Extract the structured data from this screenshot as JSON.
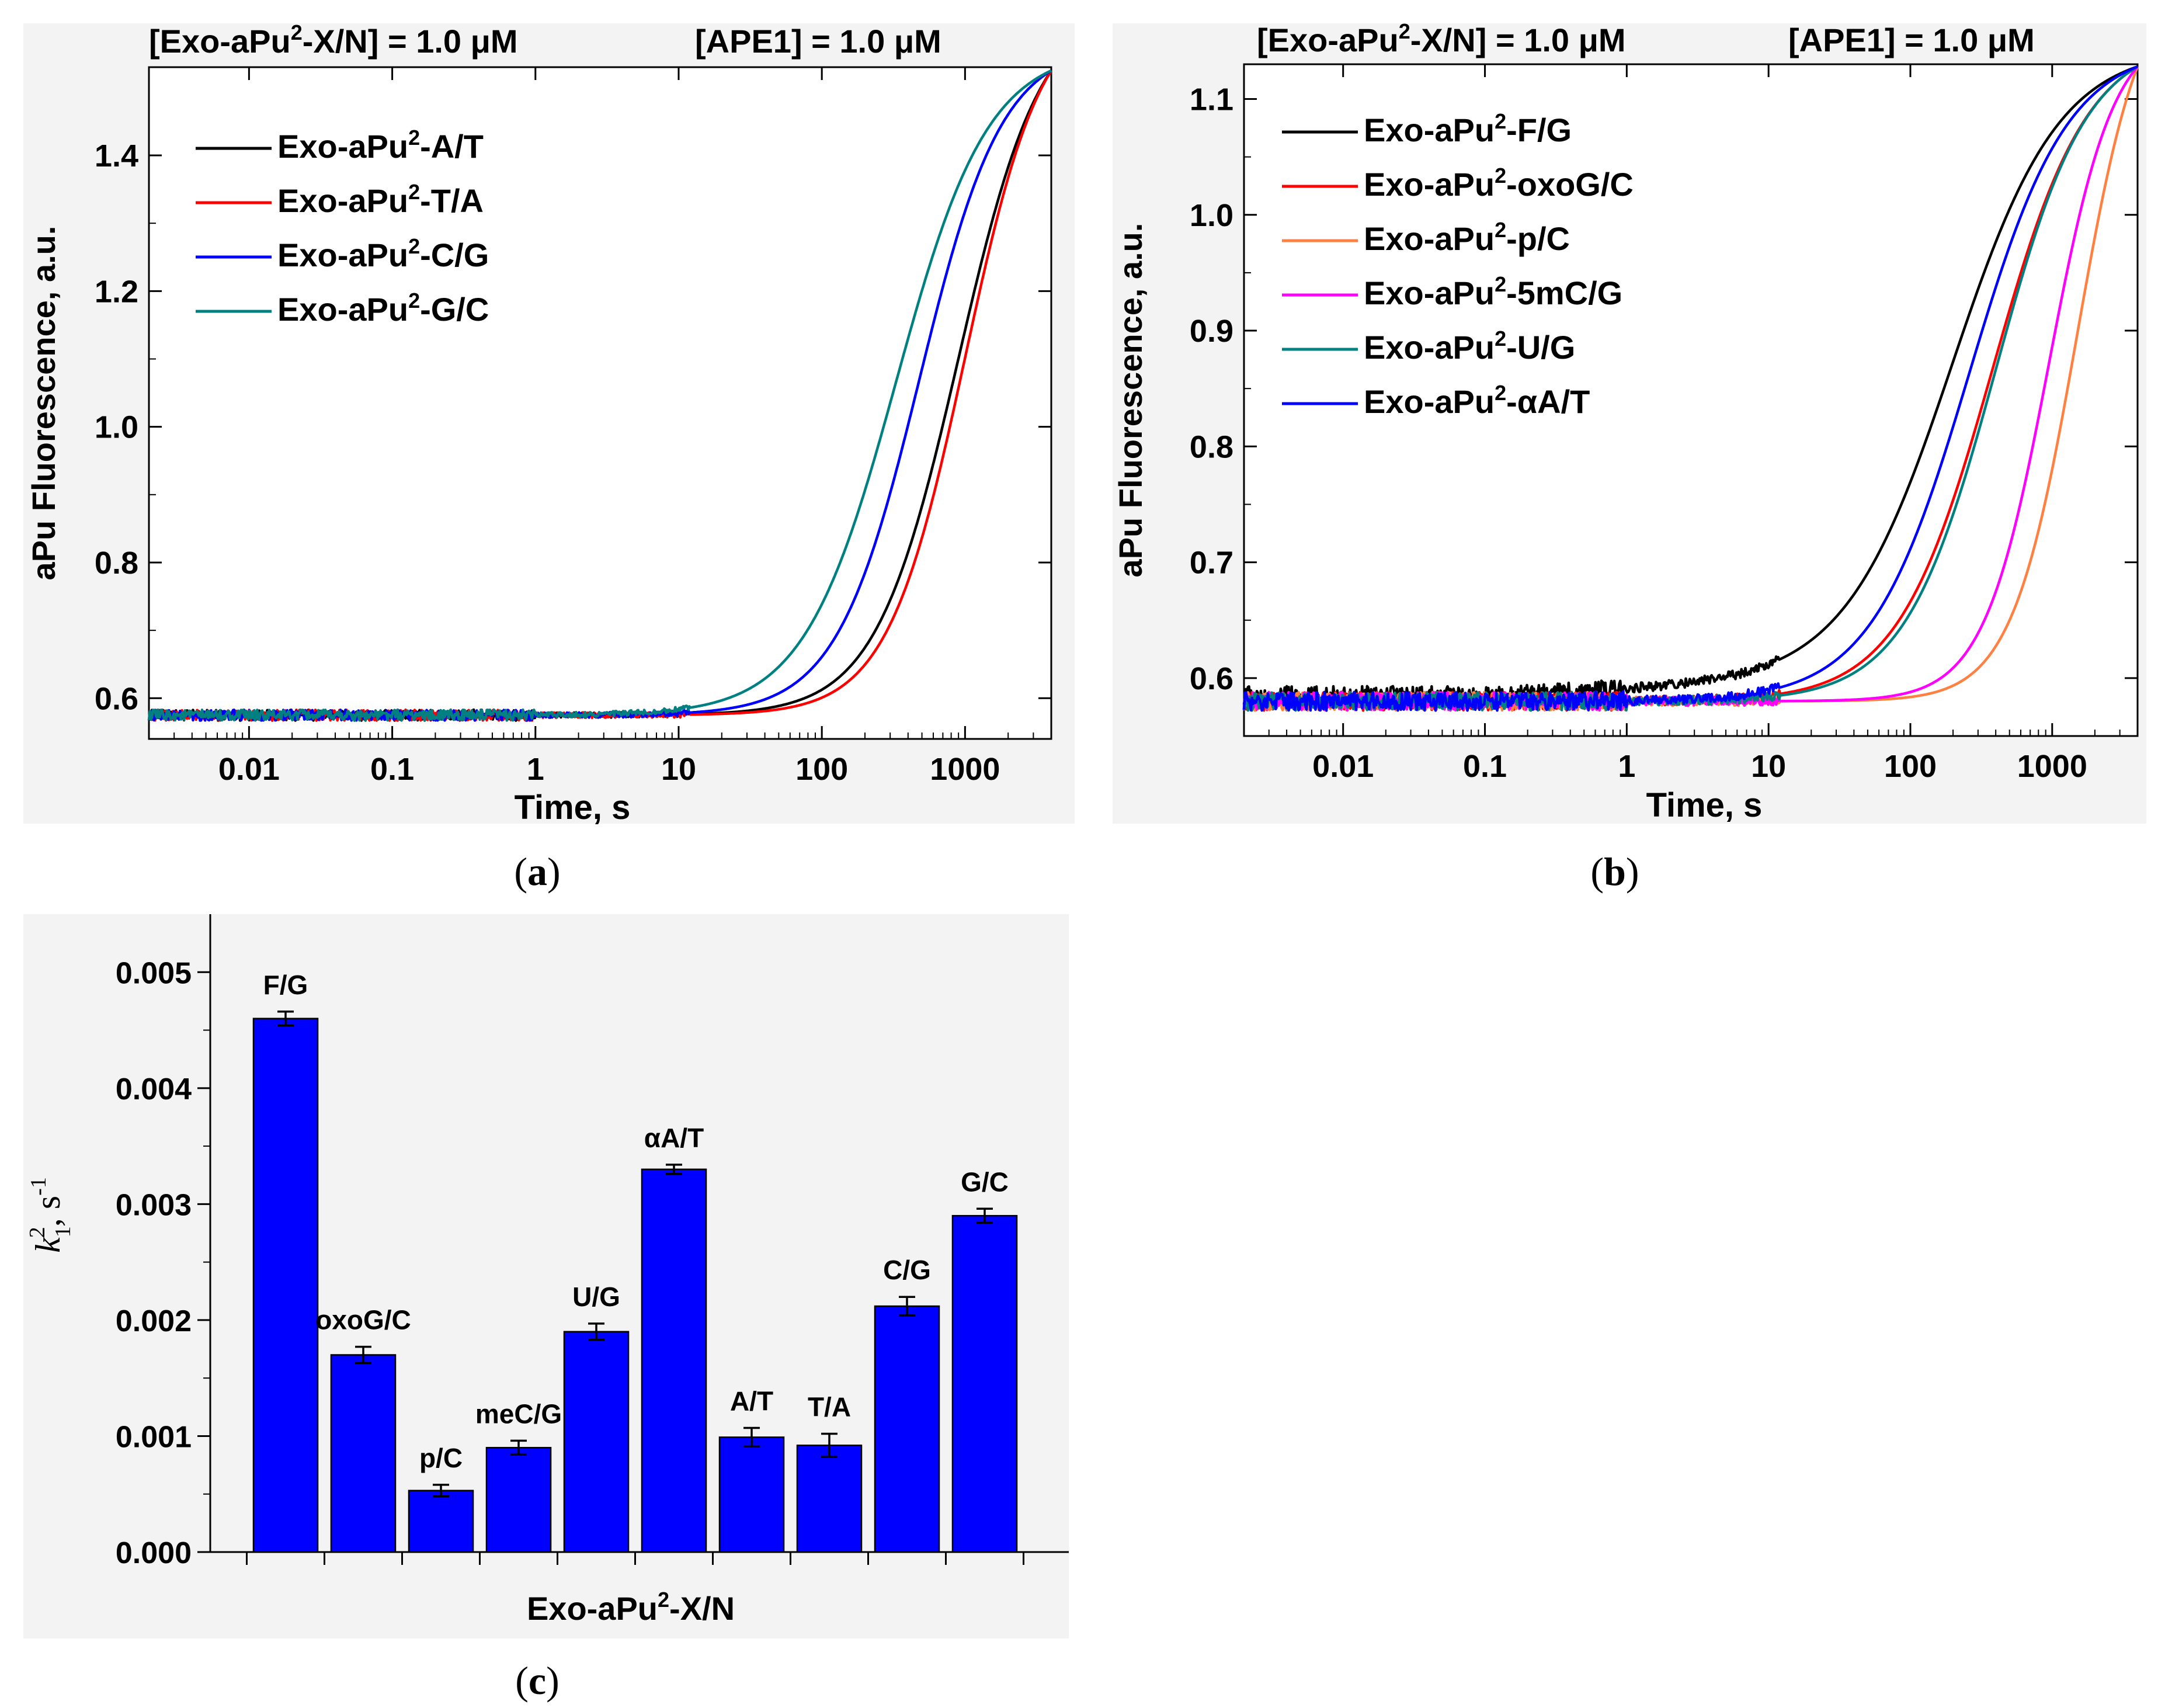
{
  "chart_data": [
    {
      "type": "line",
      "panel_label": "a",
      "header_left": {
        "prefix": "[Exo-aPu",
        "sup": "2",
        "suffix": "-X/N] = 1.0 μM"
      },
      "header_right": "[APE1] = 1.0 μM",
      "xlabel": "Time, s",
      "ylabel": "aPu Fluorescence, a.u.",
      "xscale": "log",
      "xlim": [
        0.002,
        4000
      ],
      "ylim": [
        0.54,
        1.53
      ],
      "x_ticks": [
        "0.01",
        "0.1",
        "1",
        "10",
        "100",
        "1000"
      ],
      "y_ticks": [
        "0.6",
        "0.8",
        "1.0",
        "1.2",
        "1.4"
      ],
      "series": [
        {
          "name": "A/T",
          "legend": {
            "prefix": "Exo-aPu",
            "sup": "2",
            "suffix": "-A/T"
          },
          "color": "#000000",
          "baseline": 0.575,
          "end": 1.525,
          "t_half": 900,
          "steep": 1.5,
          "noise": 0.008
        },
        {
          "name": "T/A",
          "legend": {
            "prefix": "Exo-aPu",
            "sup": "2",
            "suffix": "-T/A"
          },
          "color": "#ff0000",
          "baseline": 0.575,
          "end": 1.525,
          "t_half": 1000,
          "steep": 1.6,
          "noise": 0.008
        },
        {
          "name": "C/G",
          "legend": {
            "prefix": "Exo-aPu",
            "sup": "2",
            "suffix": "-C/G"
          },
          "color": "#0000ff",
          "baseline": 0.575,
          "end": 1.525,
          "t_half": 480,
          "steep": 1.5,
          "noise": 0.008
        },
        {
          "name": "G/C",
          "legend": {
            "prefix": "Exo-aPu",
            "sup": "2",
            "suffix": "-G/C"
          },
          "color": "#008080",
          "baseline": 0.575,
          "end": 1.525,
          "t_half": 330,
          "steep": 1.35,
          "noise": 0.008
        }
      ]
    },
    {
      "type": "line",
      "panel_label": "b",
      "header_left": {
        "prefix": "[Exo-aPu",
        "sup": "2",
        "suffix": "-X/N] = 1.0 μM"
      },
      "header_right": "[APE1] = 1.0 μM",
      "xlabel": "Time, s",
      "ylabel": "aPu Fluorescence, a.u.",
      "xscale": "log",
      "xlim": [
        0.002,
        4000
      ],
      "ylim": [
        0.55,
        1.13
      ],
      "x_ticks": [
        "0.01",
        "0.1",
        "1",
        "10",
        "100",
        "1000"
      ],
      "y_ticks": [
        "0.6",
        "0.7",
        "0.8",
        "0.9",
        "1.0",
        "1.1"
      ],
      "series": [
        {
          "name": "F/G",
          "legend": {
            "prefix": "Exo-aPu",
            "sup": "2",
            "suffix": "-F/G"
          },
          "color": "#000000",
          "baseline": 0.585,
          "end": 1.128,
          "t_half": 200,
          "steep": 1.15,
          "noise": 0.008,
          "drift": 0.02
        },
        {
          "name": "oxoG/C",
          "legend": {
            "prefix": "Exo-aPu",
            "sup": "2",
            "suffix": "-oxoG/C"
          },
          "color": "#ff0000",
          "baseline": 0.58,
          "end": 1.128,
          "t_half": 380,
          "steep": 1.3,
          "noise": 0.008
        },
        {
          "name": "p/C",
          "legend": {
            "prefix": "Exo-aPu",
            "sup": "2",
            "suffix": "-p/C"
          },
          "color": "#ff8040",
          "baseline": 0.58,
          "end": 1.128,
          "t_half": 1500,
          "steep": 1.9,
          "noise": 0.008
        },
        {
          "name": "5mC/G",
          "legend": {
            "prefix": "Exo-aPu",
            "sup": "2",
            "suffix": "-5mC/G"
          },
          "color": "#ff00ff",
          "baseline": 0.58,
          "end": 1.128,
          "t_half": 950,
          "steep": 1.9,
          "noise": 0.008
        },
        {
          "name": "U/G",
          "legend": {
            "prefix": "Exo-aPu",
            "sup": "2",
            "suffix": "-U/G"
          },
          "color": "#008080",
          "baseline": 0.58,
          "end": 1.128,
          "t_half": 400,
          "steep": 1.35,
          "noise": 0.008
        },
        {
          "name": "αA/T",
          "legend": {
            "prefix": "Exo-aPu",
            "sup": "2",
            "suffix": "-αA/T"
          },
          "color": "#0000ff",
          "baseline": 0.58,
          "end": 1.128,
          "t_half": 260,
          "steep": 1.25,
          "noise": 0.008
        }
      ]
    },
    {
      "type": "bar",
      "panel_label": "c",
      "xlabel": {
        "prefix": "Exo-aPu",
        "sup": "2",
        "suffix": "-X/N"
      },
      "ylabel": {
        "k": "k",
        "sub": "1",
        "sup": "2",
        "rest": ", s",
        "unit_sup": "-1"
      },
      "ylim": [
        0,
        0.0055
      ],
      "y_ticks": [
        "0.000",
        "0.001",
        "0.002",
        "0.003",
        "0.004",
        "0.005"
      ],
      "bar_color": "#0000ff",
      "categories": [
        "F/G",
        "oxoG/C",
        "p/C",
        "meC/G",
        "U/G",
        "αA/T",
        "A/T",
        "T/A",
        "C/G",
        "G/C"
      ],
      "values": [
        0.0046,
        0.0017,
        0.00053,
        0.0009,
        0.0019,
        0.0033,
        0.00099,
        0.00092,
        0.00212,
        0.0029
      ],
      "errors": [
        6e-05,
        7e-05,
        5e-05,
        6e-05,
        7e-05,
        4e-05,
        8e-05,
        0.0001,
        8e-05,
        6e-05
      ]
    }
  ]
}
